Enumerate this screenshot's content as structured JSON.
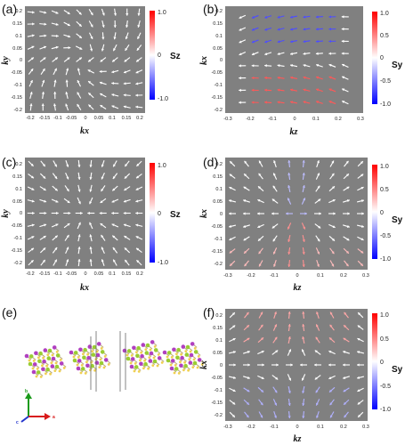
{
  "panels": [
    {
      "id": "a",
      "label": "(a)",
      "xlabel": "kx",
      "ylabel": "ky",
      "clabel": "Sz",
      "xticks": [
        "-0.2",
        "-0.15",
        "-0.1",
        "-0.05",
        "0",
        "0.05",
        "0.1",
        "0.15",
        "0.2"
      ],
      "yticks": [
        "0.2",
        "0.15",
        "0.1",
        "0.05",
        "0",
        "-0.05",
        "-0.1",
        "-0.15",
        "-0.2"
      ],
      "cbar_ticks": [
        "1.0",
        "0",
        "-1.0"
      ],
      "pattern": "swirl"
    },
    {
      "id": "b",
      "label": "(b)",
      "xlabel": "kz",
      "ylabel": "kx",
      "clabel": "Sy",
      "xticks": [
        "-0.3",
        "-0.2",
        "-0.1",
        "0",
        "0.1",
        "0.2",
        "0.3"
      ],
      "yticks": [
        "0.2",
        "0.15",
        "0.1",
        "0.05",
        "0",
        "-0.05",
        "-0.1",
        "-0.15",
        "-0.2"
      ],
      "cbar_ticks": [
        "1.0",
        "0.5",
        "0",
        "-0.5",
        "-1.0"
      ],
      "pattern": "flow"
    },
    {
      "id": "c",
      "label": "(c)",
      "xlabel": "kx",
      "ylabel": "ky",
      "clabel": "Sz",
      "xticks": [
        "-0.2",
        "-0.15",
        "-0.1",
        "-0.05",
        "0",
        "0.05",
        "0.1",
        "0.15",
        "0.2"
      ],
      "yticks": [
        "0.2",
        "0.15",
        "0.1",
        "0.05",
        "0",
        "-0.05",
        "-0.1",
        "-0.15",
        "-0.2"
      ],
      "cbar_ticks": [
        "1.0",
        "0",
        "-1.0"
      ],
      "pattern": "radial"
    },
    {
      "id": "d",
      "label": "(d)",
      "xlabel": "kz",
      "ylabel": "kx",
      "clabel": "Sy",
      "xticks": [
        "-0.3",
        "-0.2",
        "-0.1",
        "0",
        "0.1",
        "0.2",
        "0.3"
      ],
      "yticks": [
        "0.2",
        "0.15",
        "0.1",
        "0.05",
        "0",
        "-0.05",
        "-0.1",
        "-0.15",
        "-0.2"
      ],
      "cbar_ticks": [
        "1.0",
        "0.5",
        "0",
        "-0.5",
        "-1.0"
      ],
      "pattern": "hedgehog"
    },
    {
      "id": "f",
      "label": "(f)",
      "xlabel": "kz",
      "ylabel": "kx",
      "clabel": "Sy",
      "xticks": [
        "-0.3",
        "-0.2",
        "-0.1",
        "0",
        "0.1",
        "0.2",
        "0.3"
      ],
      "yticks": [
        "0.2",
        "0.15",
        "0.1",
        "0.05",
        "0",
        "-0.05",
        "-0.1",
        "-0.15",
        "-0.2"
      ],
      "cbar_ticks": [
        "1.0",
        "0.5",
        "0",
        "-0.5",
        "-1.0"
      ],
      "pattern": "saddle"
    }
  ],
  "structure_panel": {
    "label": "(e)",
    "axes": {
      "b": "b",
      "a": "a",
      "c": "c"
    }
  },
  "colors": {
    "background": "#808080",
    "arrow": "#ffffff",
    "positive": "#ff2020",
    "negative": "#2020ff",
    "zero": "#ffffff"
  }
}
